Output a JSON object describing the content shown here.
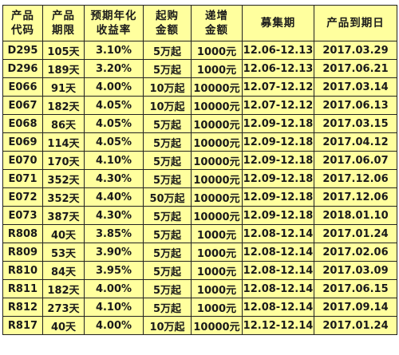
{
  "table": {
    "headers": [
      [
        "产品",
        "代码"
      ],
      [
        "产品",
        "期限"
      ],
      [
        "预期年化",
        "收益率"
      ],
      [
        "起购",
        "金额"
      ],
      [
        "递增",
        "金额"
      ],
      [
        "募集期"
      ],
      [
        "产品到期日"
      ]
    ],
    "rows": [
      [
        "D295",
        "105天",
        "3.10%",
        "5万起",
        "1000元",
        "12.06-12.13",
        "2017.03.29"
      ],
      [
        "D296",
        "189天",
        "3.20%",
        "5万起",
        "1000元",
        "12.06-12.13",
        "2017.06.21"
      ],
      [
        "E066",
        "91天",
        "4.00%",
        "10万起",
        "10000元",
        "12.07-12.12",
        "2017.03.14"
      ],
      [
        "E067",
        "182天",
        "4.05%",
        "10万起",
        "10000元",
        "12.07-12.12",
        "2017.06.13"
      ],
      [
        "E068",
        "86天",
        "4.05%",
        "5万起",
        "10000元",
        "12.09-12.18",
        "2017.03.15"
      ],
      [
        "E069",
        "114天",
        "4.05%",
        "5万起",
        "10000元",
        "12.09-12.18",
        "2017.04.12"
      ],
      [
        "E070",
        "170天",
        "4.10%",
        "5万起",
        "10000元",
        "12.09-12.18",
        "2017.06.07"
      ],
      [
        "E071",
        "352天",
        "4.30%",
        "5万起",
        "10000元",
        "12.09-12.18",
        "2017.12.06"
      ],
      [
        "E072",
        "352天",
        "4.40%",
        "50万起",
        "10000元",
        "12.09-12.18",
        "2017.12.06"
      ],
      [
        "E073",
        "387天",
        "4.30%",
        "5万起",
        "10000元",
        "12.09-12.18",
        "2018.01.10"
      ],
      [
        "R808",
        "40天",
        "3.85%",
        "5万起",
        "1000元",
        "12.08-12.14",
        "2017.01.24"
      ],
      [
        "R809",
        "53天",
        "3.90%",
        "5万起",
        "1000元",
        "12.08-12.14",
        "2017.02.06"
      ],
      [
        "R810",
        "84天",
        "3.95%",
        "5万起",
        "1000元",
        "12.08-12.14",
        "2017.03.09"
      ],
      [
        "R811",
        "182天",
        "4.00%",
        "5万起",
        "1000元",
        "12.08-12.14",
        "2017.06.15"
      ],
      [
        "R812",
        "273天",
        "4.10%",
        "5万起",
        "1000元",
        "12.08-12.14",
        "2017.09.14"
      ],
      [
        "R817",
        "40天",
        "4.00%",
        "10万起",
        "10000元",
        "12.12-12.14",
        "2017.01.24"
      ]
    ]
  },
  "colors": {
    "background": "#ffff9e",
    "border": "#222222"
  }
}
